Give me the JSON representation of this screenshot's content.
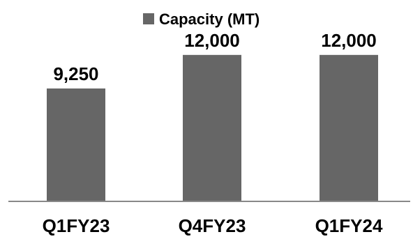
{
  "chart_data": {
    "type": "bar",
    "categories": [
      "Q1FY23",
      "Q4FY23",
      "Q1FY24"
    ],
    "series": [
      {
        "name": "Capacity (MT)",
        "values": [
          9250,
          12000,
          12000
        ]
      }
    ],
    "data_labels": [
      "9,250",
      "12,000",
      "12,000"
    ],
    "ylim": [
      0,
      16500
    ],
    "grid": false,
    "legend_position": "top",
    "bar_color": "#666666",
    "axis_color": "#888888"
  }
}
